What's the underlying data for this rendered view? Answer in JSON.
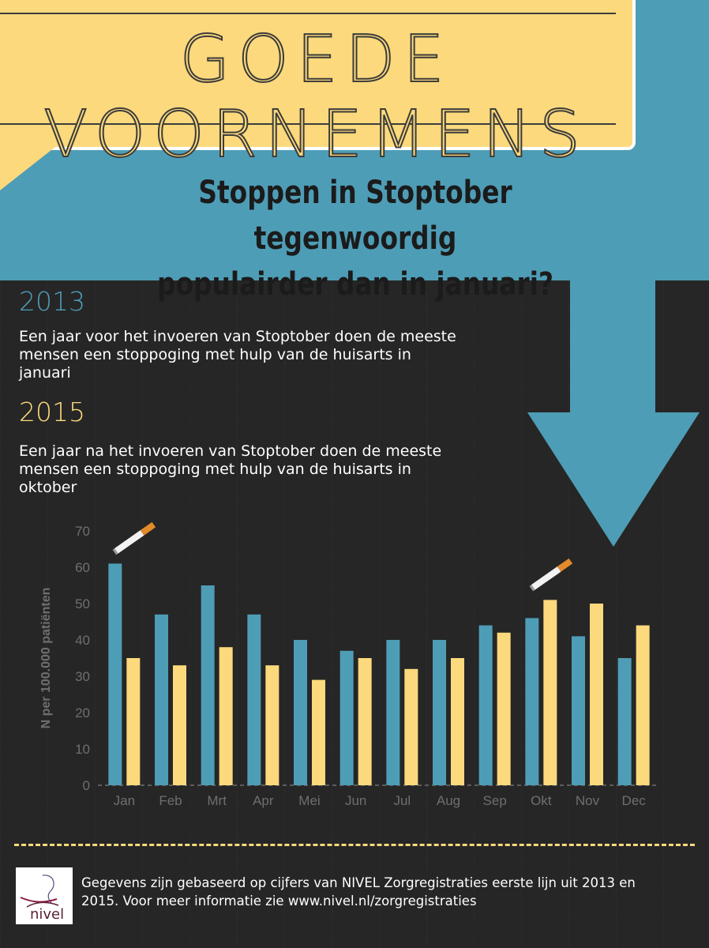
{
  "header": {
    "title": "GOEDE VOORNEMENS",
    "subtitle_line1": "Stoppen in Stoptober tegenwoordig",
    "subtitle_line2": "populairder dan in januari?"
  },
  "sections": {
    "y2013": {
      "year": "2013",
      "text": "Een jaar voor het invoeren van Stoptober doen de meeste  mensen een stoppoging met hulp van de huisarts in januari"
    },
    "y2015": {
      "year": "2015",
      "text": "Een jaar na het invoeren van Stoptober doen de meeste mensen een stoppoging met hulp van de huisarts in oktober"
    }
  },
  "colors": {
    "series_2013": "#4e9db6",
    "series_2015": "#fcd97c",
    "background": "#262626",
    "axis_text": "#6f6f6f"
  },
  "icons": [
    "cigarette-icon",
    "cigarette-icon"
  ],
  "chart_data": {
    "type": "bar",
    "categories": [
      "Jan",
      "Feb",
      "Mrt",
      "Apr",
      "Mei",
      "Jun",
      "Jul",
      "Aug",
      "Sep",
      "Okt",
      "Nov",
      "Dec"
    ],
    "series": [
      {
        "values": [
          61,
          47,
          55,
          47,
          40,
          37,
          40,
          40,
          44,
          46,
          41,
          35
        ]
      },
      {
        "values": [
          35,
          33,
          38,
          33,
          29,
          35,
          32,
          35,
          42,
          51,
          50,
          44
        ]
      }
    ],
    "ylabel": "N per 100.000 patiënten",
    "xlabel": "",
    "ylim": [
      0,
      70
    ],
    "yticks": [
      0,
      10,
      20,
      30,
      40,
      50,
      60,
      70
    ],
    "grid": false,
    "legend": "none",
    "highlight_categories": [
      "Jan",
      "Okt"
    ]
  },
  "footer": {
    "logo_text": "nivel",
    "line1": "Gegevens zijn gebaseerd op cijfers van NIVEL Zorgregistraties eerste lijn uit 2013 en",
    "line2": "2015. Voor meer informatie zie www.nivel.nl/zorgregistraties"
  }
}
